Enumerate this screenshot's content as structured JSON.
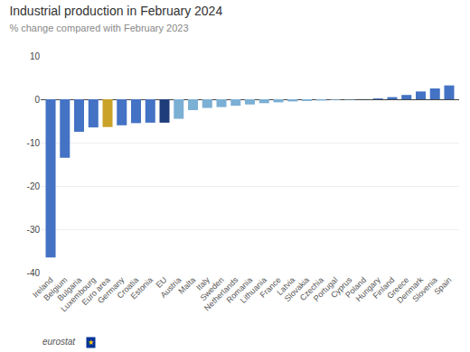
{
  "chart_data": {
    "type": "bar",
    "title": "Industrial production in February 2024",
    "subtitle": "% change compared with February 2023",
    "categories": [
      "Ireland",
      "Belgium",
      "Bulgaria",
      "Luxembourg",
      "Euro area",
      "Germany",
      "Croatia",
      "Estonia",
      "EU",
      "Austria",
      "Malta",
      "Italy",
      "Sweden",
      "Netherlands",
      "Romania",
      "Lithuania",
      "France",
      "Latvia",
      "Slovakia",
      "Czechia",
      "Portugal",
      "Cyprus",
      "Poland",
      "Hungary",
      "Finland",
      "Greece",
      "Denmark",
      "Slovenia",
      "Spain"
    ],
    "values": [
      -36.5,
      -13.5,
      -7.5,
      -6.5,
      -6.4,
      -6.0,
      -5.5,
      -5.4,
      -5.4,
      -4.5,
      -2.5,
      -2.0,
      -1.8,
      -1.5,
      -1.2,
      -0.9,
      -0.7,
      -0.5,
      -0.4,
      -0.3,
      -0.15,
      -0.1,
      0.05,
      0.2,
      0.5,
      1.0,
      1.8,
      2.5,
      3.2
    ],
    "colors": [
      "#4472c4",
      "#4472c4",
      "#4472c4",
      "#4472c4",
      "#c9a227",
      "#4472c4",
      "#4472c4",
      "#4472c4",
      "#1f3d7a",
      "#7bafd4",
      "#7bafd4",
      "#7bafd4",
      "#7bafd4",
      "#7bafd4",
      "#7bafd4",
      "#7bafd4",
      "#7bafd4",
      "#7bafd4",
      "#7bafd4",
      "#7bafd4",
      "#7bafd4",
      "#7bafd4",
      "#7bafd4",
      "#4472c4",
      "#4472c4",
      "#4472c4",
      "#4472c4",
      "#4472c4",
      "#4472c4"
    ],
    "ylim": [
      -40,
      10
    ],
    "yticks": [
      -40,
      -30,
      -20,
      -10,
      0,
      10
    ],
    "grid": true,
    "annotations": [
      "eurostat",
      "★"
    ]
  }
}
